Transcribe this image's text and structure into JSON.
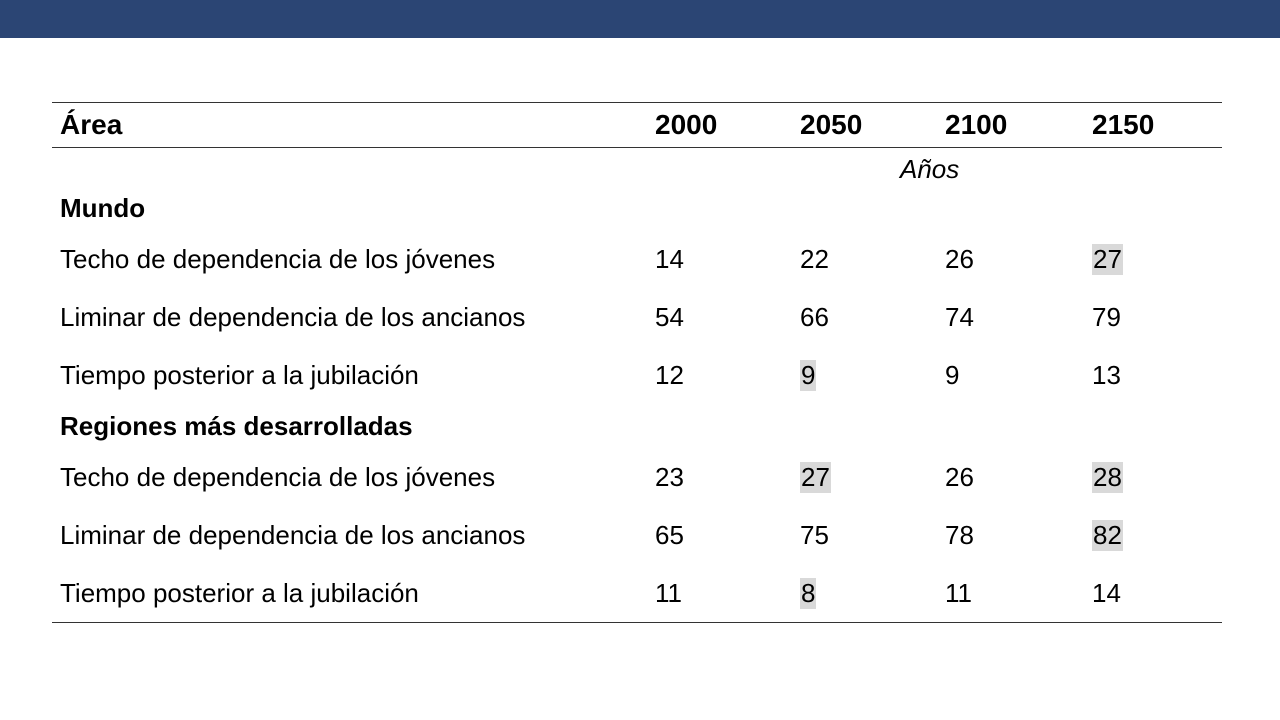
{
  "colors": {
    "top_bar": "#2b4574",
    "highlight": "#d9d9d9"
  },
  "table": {
    "header": {
      "area": "Área",
      "y2000": "2000",
      "y2050": "2050",
      "y2100": "2100",
      "y2150": "2150"
    },
    "unit_label": "Años",
    "groups": [
      {
        "name": "Mundo",
        "rows": [
          {
            "label": "Techo de dependencia de los jóvenes",
            "v2000": "14",
            "v2050": "22",
            "v2100": "26",
            "v2150": "27"
          },
          {
            "label": "Liminar de dependencia de los ancianos",
            "v2000": "54",
            "v2050": "66",
            "v2100": "74",
            "v2150": "79"
          },
          {
            "label": "Tiempo posterior a la jubilación",
            "v2000": "12",
            "v2050": "9",
            "v2100": "9",
            "v2150": "13"
          }
        ]
      },
      {
        "name": "Regiones más desarrolladas",
        "rows": [
          {
            "label": "Techo de dependencia de los jóvenes",
            "v2000": "23",
            "v2050": "27",
            "v2100": "26",
            "v2150": "28"
          },
          {
            "label": "Liminar de dependencia de los ancianos",
            "v2000": "65",
            "v2050": "75",
            "v2100": "78",
            "v2150": "82"
          },
          {
            "label": "Tiempo posterior a la jubilación",
            "v2000": "11",
            "v2050": "8",
            "v2100": "11",
            "v2150": "14"
          }
        ]
      }
    ]
  }
}
